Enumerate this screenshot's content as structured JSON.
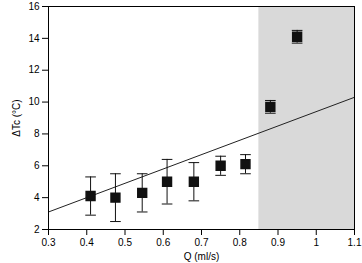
{
  "chart_data": {
    "type": "scatter",
    "x_label": "Q (ml/s)",
    "y_label": "ΔTc (°C)",
    "xlim": [
      0.3,
      1.1
    ],
    "xticks": [
      0.3,
      0.4,
      0.5,
      0.6,
      0.7,
      0.8,
      0.9,
      1,
      1.1
    ],
    "ylim": [
      2,
      16
    ],
    "yticks": [
      2,
      4,
      6,
      8,
      10,
      12,
      14,
      16
    ],
    "grid": false,
    "marker": "square",
    "color": "#111111",
    "x": [
      0.41,
      0.475,
      0.545,
      0.61,
      0.68,
      0.75,
      0.815,
      0.88,
      0.95
    ],
    "values": [
      4.1,
      4.0,
      4.3,
      5.0,
      5.0,
      6.0,
      6.1,
      9.7,
      14.1
    ],
    "errors": [
      1.2,
      1.5,
      1.2,
      1.4,
      1.2,
      0.6,
      0.6,
      0.4,
      0.4
    ],
    "fit": {
      "x": [
        0.3,
        1.1
      ],
      "values": [
        3.1,
        10.3
      ],
      "color": "#222222",
      "line_style": "solid"
    },
    "shaded_x": [
      0.85,
      1.1
    ],
    "shade_color": "#d9d9d9"
  }
}
